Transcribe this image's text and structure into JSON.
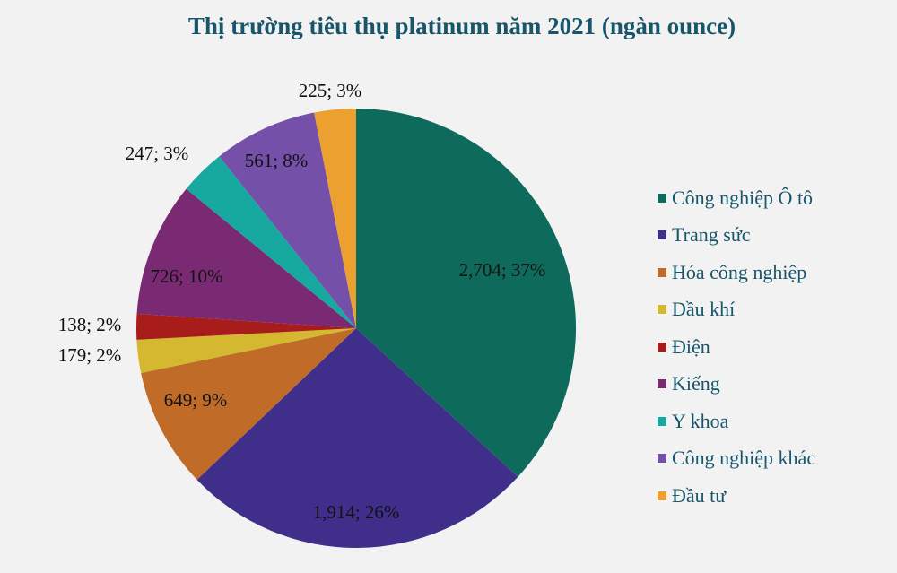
{
  "chart_data": {
    "type": "pie",
    "title": "Thị trường tiêu thụ platinum  năm 2021 (ngàn ounce)",
    "categories": [
      "Công nghiệp  Ô tô",
      "Trang sức",
      "Hóa công nghiệp",
      "Dầu khí",
      "Điện",
      "Kiếng",
      "Y khoa",
      "Công nghiệp  khác",
      "Đầu tư"
    ],
    "values": [
      2704,
      1914,
      649,
      179,
      138,
      726,
      247,
      561,
      225
    ],
    "data_labels": [
      "2,704;  37%",
      "1,914;  26%",
      "649;  9%",
      "179;  2%",
      "138;  2%",
      "726;  10%",
      "247;  3%",
      "561;  8%",
      "225;  3%"
    ],
    "colors": [
      "#0e6b5c",
      "#3f2f8a",
      "#c06c28",
      "#d4b830",
      "#a81c1c",
      "#7a2a72",
      "#17a8a0",
      "#7450a8",
      "#eba030"
    ],
    "start_angle": "12 o'clock",
    "direction": "clockwise",
    "legend_position": "right"
  }
}
